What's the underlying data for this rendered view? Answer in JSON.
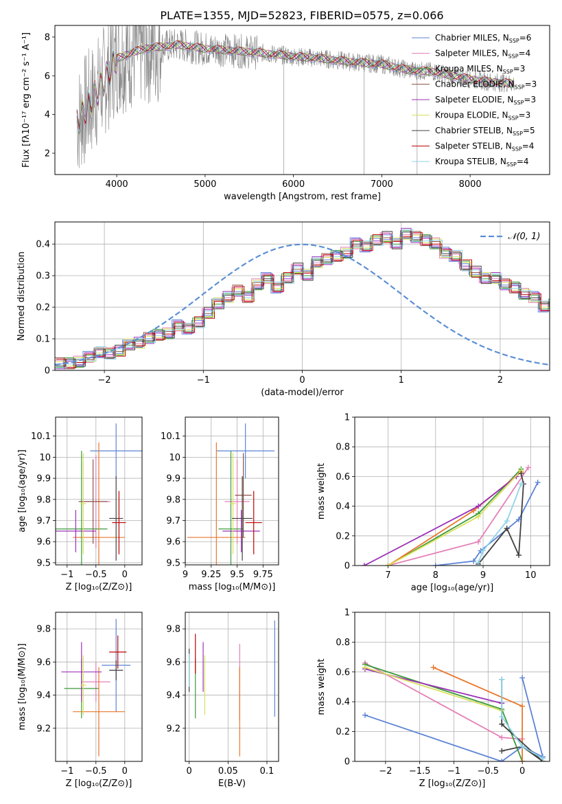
{
  "figure_title": "PLATE=1355, MJD=52823, FIBERID=0575, z=0.066",
  "chart_data": [
    {
      "panel": "spectrum",
      "type": "line",
      "xlabel": "wavelength [Angstrom, rest frame]",
      "ylabel": "Flux [fλ10⁻¹⁷ erg cm⁻² s⁻¹ A⁻¹]",
      "xlim": [
        3300,
        8900
      ],
      "ylim": [
        0.9,
        8.6
      ],
      "xticks": [
        4000,
        5000,
        6000,
        7000,
        8000
      ],
      "yticks": [
        2,
        4,
        6,
        8
      ],
      "legend_placement": "right",
      "data_color": "#808080",
      "data_continuum": {
        "x": [
          3550,
          3800,
          4000,
          4300,
          4700,
          5000,
          5300,
          5600,
          6000,
          6300,
          6700,
          7000,
          7300,
          7600,
          7900,
          8200,
          8500
        ],
        "y": [
          3.6,
          5.3,
          6.9,
          7.4,
          7.6,
          7.4,
          7.3,
          7.2,
          7.0,
          6.9,
          6.7,
          6.6,
          6.3,
          6.2,
          5.9,
          5.7,
          5.6
        ]
      },
      "series": [
        {
          "name": "Chabrier MILES, N_SSP=6",
          "color": "#5b82d6"
        },
        {
          "name": "Salpeter MILES, N_SSP=4",
          "color": "#e67fb7"
        },
        {
          "name": "Kroupa MILES, N_SSP=3",
          "color": "#3c9a3c"
        },
        {
          "name": "Chabrier ELODIE, N_SSP=3",
          "color": "#8c564b"
        },
        {
          "name": "Salpeter ELODIE, N_SSP=3",
          "color": "#9b30b8"
        },
        {
          "name": "Kroupa ELODIE, N_SSP=3",
          "color": "#d8e05a"
        },
        {
          "name": "Chabrier STELIB, N_SSP=5",
          "color": "#404040"
        },
        {
          "name": "Salpeter STELIB, N_SSP=4",
          "color": "#c00000"
        },
        {
          "name": "Kroupa STELIB, N_SSP=4",
          "color": "#8fd3e8"
        }
      ]
    },
    {
      "panel": "residuals",
      "type": "line",
      "xlabel": "(data-model)/error",
      "ylabel": "Normed distribution",
      "xlim": [
        -2.5,
        2.5
      ],
      "ylim": [
        0,
        0.47
      ],
      "xticks": [
        -2,
        -1,
        0,
        1,
        2
      ],
      "yticks": [
        0.0,
        0.1,
        0.2,
        0.3,
        0.4
      ],
      "grid": true,
      "legend_placement": "top-right",
      "reference": {
        "name": "𝒩(0, 1)",
        "color": "#5b8fd6",
        "style": "dashed"
      },
      "bin_width": 0.1,
      "bin_start": -2.5,
      "hist": [
        0.02,
        0.02,
        0.025,
        0.04,
        0.055,
        0.05,
        0.06,
        0.08,
        0.085,
        0.1,
        0.11,
        0.115,
        0.14,
        0.13,
        0.15,
        0.18,
        0.21,
        0.23,
        0.25,
        0.23,
        0.27,
        0.29,
        0.26,
        0.29,
        0.32,
        0.3,
        0.34,
        0.35,
        0.36,
        0.37,
        0.4,
        0.39,
        0.41,
        0.42,
        0.4,
        0.43,
        0.42,
        0.41,
        0.4,
        0.37,
        0.36,
        0.33,
        0.31,
        0.29,
        0.29,
        0.27,
        0.26,
        0.24,
        0.23,
        0.2,
        0.21,
        0.18,
        0.17,
        0.14,
        0.14,
        0.12,
        0.11,
        0.1,
        0.09,
        0.08,
        0.075,
        0.06,
        0.055,
        0.05,
        0.04,
        0.03,
        0.03,
        0.025,
        0.02,
        0.02
      ],
      "hist_offsets": [
        0,
        0.012,
        -0.01,
        0.02,
        -0.015,
        0.008,
        -0.006,
        0.016,
        -0.012
      ],
      "series_colors": [
        "#5b82d6",
        "#e67fb7",
        "#3c9a3c",
        "#8c564b",
        "#9b30b8",
        "#d8e05a",
        "#404040",
        "#c00000",
        "#8fd3e8"
      ]
    },
    {
      "panel": "age_vs_Z",
      "type": "scatter",
      "xlabel": "Z [log₁₀(Z/Z⊙)]",
      "ylabel": "age  [log₁₀(age/yr)]",
      "xlim": [
        -1.2,
        0.3
      ],
      "ylim": [
        9.49,
        10.19
      ],
      "xticks": [
        -1.0,
        -0.5,
        0.0
      ],
      "yticks": [
        9.5,
        9.6,
        9.7,
        9.8,
        9.9,
        10.0,
        10.1
      ],
      "grid": true,
      "points": [
        {
          "x": -0.15,
          "y": 10.03,
          "xerr": 0.45,
          "yerr": 0.13,
          "color": "#5b82d6"
        },
        {
          "x": -0.5,
          "y": 9.79,
          "xerr": 0.25,
          "yerr": 0.22,
          "color": "#e67fb7"
        },
        {
          "x": -0.75,
          "y": 9.66,
          "xerr": 0.45,
          "yerr": 0.37,
          "color": "#3c9a3c"
        },
        {
          "x": -0.45,
          "y": 9.62,
          "xerr": 0.45,
          "yerr": 0.45,
          "color": "#e8762b"
        },
        {
          "x": -0.55,
          "y": 9.79,
          "xerr": 0.25,
          "yerr": 0.2,
          "color": "#8c564b"
        },
        {
          "x": -0.85,
          "y": 9.65,
          "xerr": 0.35,
          "yerr": 0.1,
          "color": "#9b30b8"
        },
        {
          "x": -0.72,
          "y": 9.78,
          "xerr": 0.05,
          "yerr": 0.24,
          "color": "#d8e05a"
        },
        {
          "x": -0.15,
          "y": 9.71,
          "xerr": 0.12,
          "yerr": 0.2,
          "color": "#404040"
        },
        {
          "x": -0.1,
          "y": 9.69,
          "xerr": 0.12,
          "yerr": 0.15,
          "color": "#c00000"
        }
      ]
    },
    {
      "panel": "age_vs_mass",
      "type": "scatter",
      "xlabel": "mass [log₁₀(M/M⊙)]",
      "xlim": [
        9.0,
        9.9
      ],
      "ylim": [
        9.49,
        10.19
      ],
      "xticks": [
        9.0,
        9.25,
        9.5,
        9.75
      ],
      "yticks": [
        9.5,
        9.6,
        9.7,
        9.8,
        9.9,
        10.0,
        10.1
      ],
      "grid": true,
      "points": [
        {
          "x": 9.58,
          "y": 10.03,
          "xerr": 0.28,
          "yerr": 0.13,
          "color": "#5b82d6"
        },
        {
          "x": 9.5,
          "y": 9.79,
          "xerr": 0.12,
          "yerr": 0.2,
          "color": "#e67fb7"
        },
        {
          "x": 9.44,
          "y": 9.66,
          "xerr": 0.12,
          "yerr": 0.37,
          "color": "#3c9a3c"
        },
        {
          "x": 9.3,
          "y": 9.62,
          "xerr": 0.28,
          "yerr": 0.45,
          "color": "#e8762b"
        },
        {
          "x": 9.56,
          "y": 9.82,
          "xerr": 0.08,
          "yerr": 0.2,
          "color": "#8c564b"
        },
        {
          "x": 9.54,
          "y": 9.65,
          "xerr": 0.18,
          "yerr": 0.1,
          "color": "#9b30b8"
        },
        {
          "x": 9.46,
          "y": 9.78,
          "xerr": 0.03,
          "yerr": 0.24,
          "color": "#d8e05a"
        },
        {
          "x": 9.55,
          "y": 9.71,
          "xerr": 0.1,
          "yerr": 0.2,
          "color": "#404040"
        },
        {
          "x": 9.66,
          "y": 9.69,
          "xerr": 0.08,
          "yerr": 0.15,
          "color": "#c00000"
        }
      ]
    },
    {
      "panel": "mass_weight_vs_age",
      "type": "line",
      "xlabel": "age  [log₁₀(age/yr)]",
      "ylabel": "mass weight",
      "xlim": [
        6.3,
        10.4
      ],
      "ylim": [
        0.0,
        1.0
      ],
      "xticks": [
        7,
        8,
        9,
        10
      ],
      "yticks": [
        0.0,
        0.2,
        0.4,
        0.6,
        0.8,
        1.0
      ],
      "grid": true,
      "series": [
        {
          "color": "#5b82d6",
          "x": [
            8.0,
            8.8,
            8.95,
            9.75,
            10.15
          ],
          "y": [
            0.0,
            0.03,
            0.1,
            0.31,
            0.56
          ]
        },
        {
          "color": "#e67fb7",
          "x": [
            7.0,
            8.9,
            9.95
          ],
          "y": [
            0.0,
            0.16,
            0.66
          ]
        },
        {
          "color": "#3c9a3c",
          "x": [
            7.0,
            8.9,
            9.8
          ],
          "y": [
            0.0,
            0.35,
            0.65
          ]
        },
        {
          "color": "#e8762b",
          "x": [
            7.0,
            8.8,
            9.8
          ],
          "y": [
            0.0,
            0.37,
            0.63
          ]
        },
        {
          "color": "#9b30b8",
          "x": [
            6.5,
            8.9,
            9.7
          ],
          "y": [
            0.0,
            0.4,
            0.6
          ]
        },
        {
          "color": "#d8e05a",
          "x": [
            7.0,
            8.9,
            9.8
          ],
          "y": [
            0.0,
            0.33,
            0.64
          ]
        },
        {
          "color": "#404040",
          "x": [
            8.9,
            9.5,
            9.75,
            9.85,
            9.8
          ],
          "y": [
            0.01,
            0.25,
            0.07,
            0.55,
            0.62
          ]
        },
        {
          "color": "#8fd3e8",
          "x": [
            8.9,
            9.0,
            9.5,
            9.8
          ],
          "y": [
            0.02,
            0.1,
            0.3,
            0.55
          ]
        }
      ]
    },
    {
      "panel": "mass_vs_Z",
      "type": "scatter",
      "xlabel": "Z [log₁₀(Z/Z⊙)]",
      "ylabel": "mass [log₁₀(M/M⊙)]",
      "xlim": [
        -1.2,
        0.3
      ],
      "ylim": [
        9.0,
        9.9
      ],
      "xticks": [
        -1.0,
        -0.5,
        0.0
      ],
      "yticks": [
        9.2,
        9.4,
        9.6,
        9.8
      ],
      "grid": true,
      "points": [
        {
          "x": -0.15,
          "y": 9.58,
          "xerr": 0.25,
          "yerr": 0.28,
          "color": "#5b82d6"
        },
        {
          "x": -0.5,
          "y": 9.48,
          "xerr": 0.25,
          "yerr": 0.12,
          "color": "#e67fb7"
        },
        {
          "x": -0.75,
          "y": 9.44,
          "xerr": 0.3,
          "yerr": 0.18,
          "color": "#3c9a3c"
        },
        {
          "x": -0.45,
          "y": 9.3,
          "xerr": 0.45,
          "yerr": 0.27,
          "color": "#e8762b"
        },
        {
          "x": -0.75,
          "y": 9.54,
          "xerr": 0.35,
          "yerr": 0.18,
          "color": "#9b30b8"
        },
        {
          "x": -0.72,
          "y": 9.46,
          "xerr": 0.05,
          "yerr": 0.18,
          "color": "#d8e05a"
        },
        {
          "x": -0.15,
          "y": 9.55,
          "xerr": 0.12,
          "yerr": 0.06,
          "color": "#404040"
        },
        {
          "x": -0.12,
          "y": 9.66,
          "xerr": 0.15,
          "yerr": 0.1,
          "color": "#c00000"
        }
      ]
    },
    {
      "panel": "mass_vs_EBV",
      "type": "scatter",
      "xlabel": "E(B-V)",
      "xlim": [
        -0.005,
        0.115
      ],
      "ylim": [
        9.0,
        9.9
      ],
      "xticks": [
        0.0,
        0.05,
        0.1
      ],
      "yticks": [
        9.2,
        9.4,
        9.6,
        9.8
      ],
      "grid": true,
      "points": [
        {
          "x": 0.11,
          "y": 9.56,
          "yerr": 0.29,
          "color": "#5b82d6"
        },
        {
          "x": 0.065,
          "y": 9.48,
          "yerr": 0.23,
          "color": "#e67fb7"
        },
        {
          "x": 0.065,
          "y": 9.3,
          "yerr": 0.27,
          "color": "#e8762b"
        },
        {
          "x": 0.02,
          "y": 9.46,
          "yerr": 0.18,
          "color": "#d8e05a"
        },
        {
          "x": 0.018,
          "y": 9.57,
          "yerr": 0.15,
          "color": "#9b30b8"
        },
        {
          "x": 0.008,
          "y": 9.44,
          "yerr": 0.18,
          "color": "#3c9a3c"
        },
        {
          "x": 0.008,
          "y": 9.65,
          "yerr": 0.12,
          "color": "#c00000"
        },
        {
          "x": 0.0,
          "y": 9.55,
          "yerr": 0.13,
          "color": "#404040"
        },
        {
          "x": 0.0,
          "y": 9.55,
          "yerr": 0.1,
          "color": "#8fd3e8"
        }
      ]
    },
    {
      "panel": "mass_weight_vs_Z",
      "type": "line",
      "xlabel": "Z [log₁₀(Z/Z⊙)]",
      "ylabel": "mass weight",
      "xlim": [
        -2.45,
        0.4
      ],
      "ylim": [
        0.0,
        1.0
      ],
      "xticks": [
        -2.0,
        -1.5,
        -1.0,
        -0.5,
        0.0
      ],
      "yticks": [
        0.0,
        0.2,
        0.4,
        0.6,
        0.8,
        1.0
      ],
      "grid": true,
      "series": [
        {
          "color": "#5b82d6",
          "x": [
            -2.3,
            -0.3,
            0.0,
            0.3,
            0.0
          ],
          "y": [
            0.31,
            0.0,
            0.1,
            0.03,
            0.56
          ]
        },
        {
          "color": "#e67fb7",
          "x": [
            -2.3,
            -0.3,
            0.0
          ],
          "y": [
            0.66,
            0.16,
            0.15
          ]
        },
        {
          "color": "#3c9a3c",
          "x": [
            -2.3,
            -0.3,
            0.0
          ],
          "y": [
            0.65,
            0.35,
            0.0
          ]
        },
        {
          "color": "#e8762b",
          "x": [
            -1.3,
            0.0,
            0.0
          ],
          "y": [
            0.63,
            0.37,
            0.0
          ]
        },
        {
          "color": "#9b30b8",
          "x": [
            -2.3,
            -0.3
          ],
          "y": [
            0.62,
            0.39
          ]
        },
        {
          "color": "#d8e05a",
          "x": [
            -2.3,
            -0.3
          ],
          "y": [
            0.63,
            0.34
          ]
        },
        {
          "color": "#404040",
          "x": [
            -0.3,
            0.0,
            0.3,
            -0.3,
            -0.3
          ],
          "y": [
            0.07,
            0.1,
            0.0,
            0.25,
            0.55
          ]
        },
        {
          "color": "#8fd3e8",
          "x": [
            -0.3,
            -0.3,
            0.0,
            0.3
          ],
          "y": [
            0.55,
            0.3,
            0.1,
            0.02
          ]
        }
      ]
    }
  ]
}
